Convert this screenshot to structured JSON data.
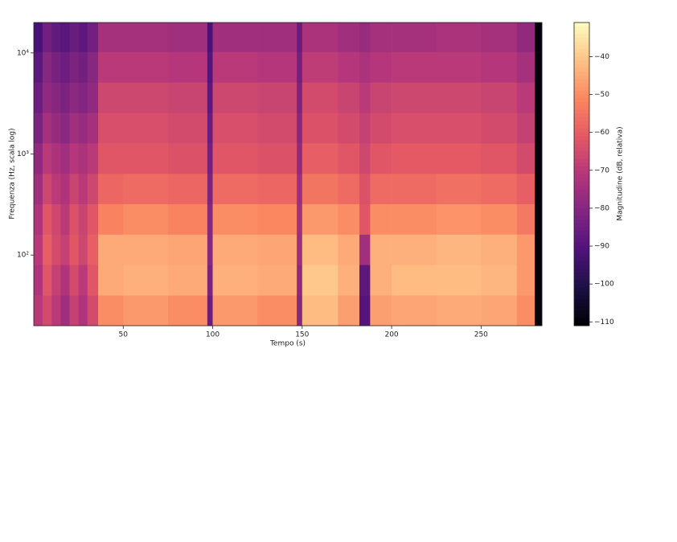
{
  "chart_data": {
    "type": "heatmap",
    "x_label": "Tempo (s)",
    "y_label": "Frequenza (Hz, scala log)",
    "colorbar_label": "Magnitudine (dB, relativa)",
    "xlim": [
      0,
      284
    ],
    "xticks": [
      50,
      100,
      150,
      200,
      250
    ],
    "ylim": [
      20,
      20000
    ],
    "log_y": true,
    "yticks": [
      {
        "value": 100,
        "label": "10²"
      },
      {
        "value": 1000,
        "label": "10³"
      },
      {
        "value": 10000,
        "label": "10⁴"
      }
    ],
    "clim": [
      -111,
      -31
    ],
    "cticks": [
      {
        "value": -110,
        "label": "−110"
      },
      {
        "value": -100,
        "label": "−100"
      },
      {
        "value": -90,
        "label": "−90"
      },
      {
        "value": -80,
        "label": "−80"
      },
      {
        "value": -70,
        "label": "−70"
      },
      {
        "value": -60,
        "label": "−60"
      },
      {
        "value": -50,
        "label": "−50"
      },
      {
        "value": -40,
        "label": "−40"
      }
    ],
    "colorscale": [
      "#000004",
      "#1c1044",
      "#4f127b",
      "#812581",
      "#b5367a",
      "#e55964",
      "#fb8761",
      "#fec287",
      "#fcfdbf"
    ],
    "x_edges": [
      0,
      5,
      10,
      15,
      20,
      25,
      30,
      36,
      50,
      75,
      97,
      100,
      125,
      147,
      150,
      170,
      182,
      188,
      200,
      225,
      250,
      270,
      280,
      284
    ],
    "y_edges": [
      20,
      40,
      80,
      160,
      320,
      640,
      1280,
      2560,
      5120,
      10240,
      20000
    ],
    "z": [
      [
        -70,
        -65,
        -70,
        -75,
        -68,
        -72,
        -65,
        -50,
        -48,
        -50,
        -85,
        -48,
        -50,
        -80,
        -42,
        -47,
        -90,
        -47,
        -46,
        -45,
        -46,
        -50,
        -110
      ],
      [
        -72,
        -62,
        -68,
        -72,
        -65,
        -70,
        -62,
        -45,
        -44,
        -45,
        -82,
        -44,
        -45,
        -78,
        -40,
        -44,
        -88,
        -44,
        -42,
        -42,
        -43,
        -48,
        -110
      ],
      [
        -70,
        -60,
        -65,
        -68,
        -62,
        -66,
        -60,
        -45,
        -45,
        -46,
        -80,
        -45,
        -46,
        -76,
        -42,
        -45,
        -75,
        -44,
        -44,
        -43,
        -44,
        -48,
        -110
      ],
      [
        -72,
        -62,
        -66,
        -70,
        -63,
        -67,
        -62,
        -52,
        -50,
        -52,
        -80,
        -50,
        -51,
        -75,
        -48,
        -50,
        -62,
        -50,
        -50,
        -49,
        -50,
        -54,
        -110
      ],
      [
        -75,
        -66,
        -70,
        -72,
        -67,
        -70,
        -66,
        -58,
        -57,
        -58,
        -82,
        -57,
        -58,
        -76,
        -55,
        -57,
        -63,
        -57,
        -57,
        -56,
        -57,
        -60,
        -110
      ],
      [
        -78,
        -70,
        -73,
        -75,
        -71,
        -73,
        -70,
        -62,
        -62,
        -63,
        -84,
        -62,
        -63,
        -78,
        -60,
        -62,
        -66,
        -62,
        -61,
        -61,
        -62,
        -65,
        -110
      ],
      [
        -82,
        -74,
        -77,
        -79,
        -75,
        -77,
        -74,
        -64,
        -64,
        -65,
        -86,
        -64,
        -65,
        -80,
        -63,
        -65,
        -68,
        -65,
        -64,
        -64,
        -65,
        -68,
        -110
      ],
      [
        -85,
        -78,
        -80,
        -82,
        -79,
        -81,
        -78,
        -66,
        -66,
        -67,
        -88,
        -66,
        -67,
        -82,
        -65,
        -67,
        -70,
        -67,
        -66,
        -66,
        -67,
        -70,
        -110
      ],
      [
        -88,
        -80,
        -83,
        -85,
        -82,
        -84,
        -80,
        -70,
        -70,
        -71,
        -90,
        -70,
        -71,
        -84,
        -69,
        -71,
        -73,
        -71,
        -70,
        -70,
        -71,
        -74,
        -110
      ],
      [
        -92,
        -84,
        -87,
        -89,
        -86,
        -88,
        -84,
        -74,
        -74,
        -75,
        -92,
        -75,
        -75,
        -86,
        -73,
        -75,
        -77,
        -74,
        -74,
        -73,
        -74,
        -78,
        -110
      ]
    ]
  }
}
